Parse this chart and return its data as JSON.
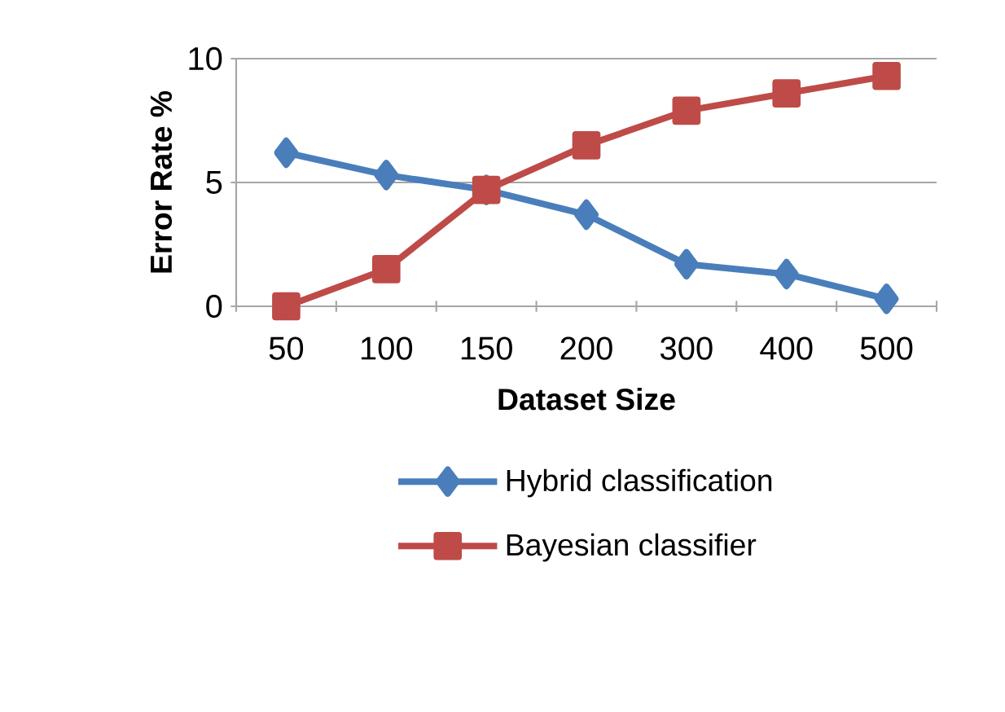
{
  "chart_data": {
    "type": "line",
    "xlabel": "Dataset Size",
    "ylabel": "Error Rate %",
    "categories": [
      "50",
      "100",
      "150",
      "200",
      "300",
      "400",
      "500"
    ],
    "series": [
      {
        "name": "Hybrid classification",
        "color": "#4a7ebb",
        "marker": "diamond",
        "values": [
          6.2,
          5.3,
          4.7,
          3.7,
          1.7,
          1.3,
          0.3
        ]
      },
      {
        "name": "Bayesian classifier",
        "color": "#be4b48",
        "marker": "square",
        "values": [
          0,
          1.5,
          4.7,
          6.5,
          7.9,
          8.6,
          9.3
        ]
      }
    ],
    "ylim": [
      0,
      10
    ],
    "yticks": [
      0,
      5,
      10
    ],
    "grid": "y",
    "legend": "bottom",
    "line_style": "solid"
  }
}
